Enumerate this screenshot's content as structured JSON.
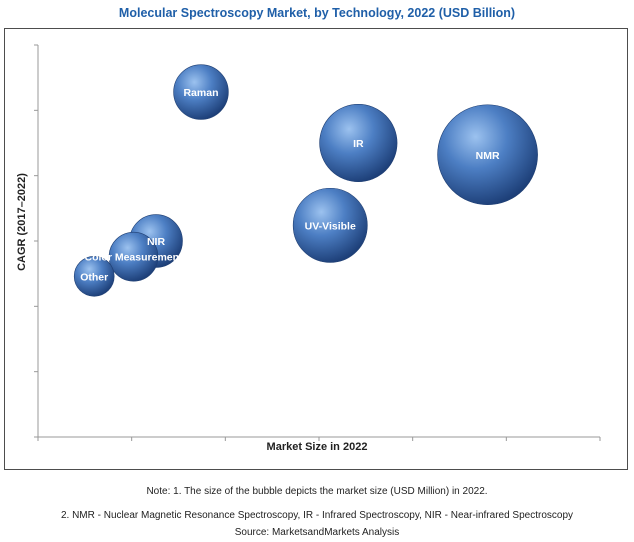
{
  "chart_data": {
    "type": "scatter",
    "title": "Molecular Spectroscopy Market, by Technology, 2022 (USD Billion)",
    "xlabel": "Market Size in 2022",
    "ylabel": "CAGR (2017–2022)",
    "grid": false,
    "points": [
      {
        "label": "NMR",
        "x": 0.8,
        "y": 0.72,
        "size": 1.0
      },
      {
        "label": "IR",
        "x": 0.57,
        "y": 0.75,
        "size": 0.6
      },
      {
        "label": "Raman",
        "x": 0.29,
        "y": 0.88,
        "size": 0.3
      },
      {
        "label": "UV-Visible",
        "x": 0.52,
        "y": 0.54,
        "size": 0.55
      },
      {
        "label": "NIR",
        "x": 0.21,
        "y": 0.5,
        "size": 0.28
      },
      {
        "label": "Color Measurement",
        "x": 0.17,
        "y": 0.46,
        "size": 0.24
      },
      {
        "label": "Other",
        "x": 0.1,
        "y": 0.41,
        "size": 0.16
      }
    ],
    "bubble_color": "#3e6fb4"
  },
  "notes": [
    "Note: 1. The size of the bubble depicts the market size (USD Million) in 2022.",
    "2. NMR - Nuclear Magnetic Resonance Spectroscopy, IR - Infrared Spectroscopy, NIR - Near-infrared Spectroscopy",
    "Source: MarketsandMarkets Analysis"
  ]
}
